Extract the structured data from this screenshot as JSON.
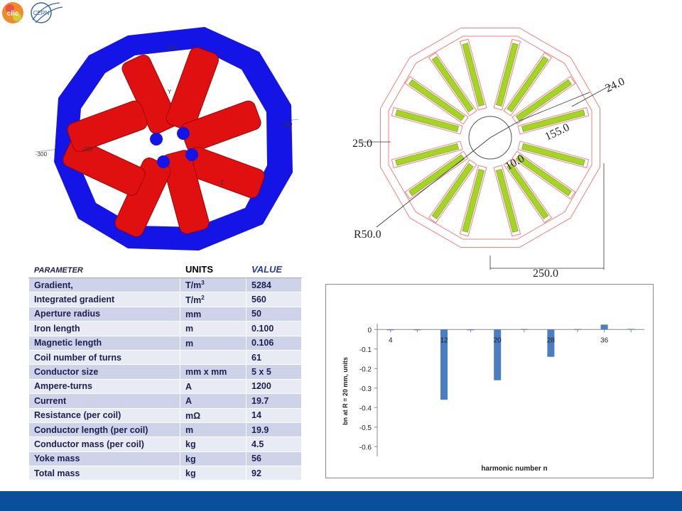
{
  "logos": {
    "left_text": "clic",
    "right_text": "CERN"
  },
  "render3d": {
    "axis_labels": [
      "200",
      "-200",
      "-300",
      "300",
      "Y",
      "Z"
    ],
    "colors": {
      "yoke": "#1414e6",
      "coil": "#e01010"
    }
  },
  "drawing": {
    "dimensions": {
      "d24": "24.0",
      "d155": "155.0",
      "d10": "10.0",
      "d25": "25.0",
      "r50": "R50.0",
      "d250": "250.0"
    },
    "colors": {
      "outline": "#f08080",
      "coil": "#a6d424"
    }
  },
  "table": {
    "headers": [
      "PARAMETER",
      "UNITS",
      "VALUE"
    ],
    "rows": [
      {
        "param": "Gradient,",
        "unit": "T/m",
        "unit_sup": "3",
        "value": "5284"
      },
      {
        "param": "Integrated gradient",
        "unit": "T/m",
        "unit_sup": "2",
        "value": "560"
      },
      {
        "param": "Aperture radius",
        "unit": "mm",
        "unit_sup": "",
        "value": "50"
      },
      {
        "param": "Iron length",
        "unit": "m",
        "unit_sup": "",
        "value": "0.100"
      },
      {
        "param": "Magnetic length",
        "unit": "m",
        "unit_sup": "",
        "value": "0.106"
      },
      {
        "param": "Coil number of turns",
        "unit": "",
        "unit_sup": "",
        "value": "61"
      },
      {
        "param": "Conductor size",
        "unit": "mm x mm",
        "unit_sup": "",
        "value": "5 x 5"
      },
      {
        "param": "Ampere-turns",
        "unit": "A",
        "unit_sup": "",
        "value": "1200"
      },
      {
        "param": "Current",
        "unit": "A",
        "unit_sup": "",
        "value": "19.7"
      },
      {
        "param": "Resistance (per coil)",
        "unit": "mΩ",
        "unit_sup": "",
        "value": "14"
      },
      {
        "param": "Conductor length (per coil)",
        "unit": "m",
        "unit_sup": "",
        "value": "19.9"
      },
      {
        "param": "Conductor mass (per coil)",
        "unit": "kg",
        "unit_sup": "",
        "value": "4.5"
      },
      {
        "param": "Yoke mass",
        "unit": "kg",
        "unit_sup": "",
        "value": "56"
      },
      {
        "param": "Total mass",
        "unit": "kg",
        "unit_sup": "",
        "value": "92"
      }
    ]
  },
  "chart_data": {
    "type": "bar",
    "x": [
      4,
      8,
      12,
      16,
      20,
      24,
      28,
      32,
      36,
      40
    ],
    "values": [
      0,
      0,
      -0.36,
      0,
      -0.26,
      0.002,
      -0.14,
      0.002,
      0.025,
      0.003
    ],
    "tick_labels_x": [
      "4",
      "12",
      "20",
      "28",
      "36"
    ],
    "tick_labels_y": [
      "0",
      "-0.1",
      "-0.2",
      "-0.3",
      "-0.4",
      "-0.5",
      "-0.6"
    ],
    "ylim": [
      -0.65,
      0.03
    ],
    "xlabel": "harmonic number n",
    "ylabel": "bn at R = 20 mm, units",
    "grid": false,
    "bar_color": "#4a7ec0"
  },
  "footer_color": "#0a4f9a"
}
